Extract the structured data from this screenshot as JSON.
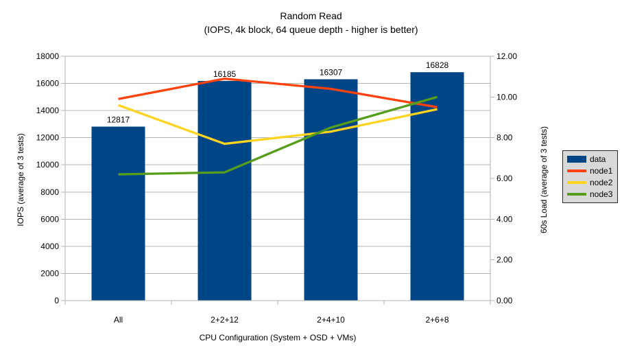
{
  "chart_data": {
    "type": "combo-bar-line",
    "title": "Random Read",
    "subtitle": "(IOPS, 4k block, 64 queue depth - higher is better)",
    "categories": [
      "All",
      "2+2+12",
      "2+4+10",
      "2+6+8"
    ],
    "bar_series": {
      "name": "data",
      "color": "#004586",
      "axis": "left",
      "values": [
        12817,
        16185,
        16307,
        16828
      ],
      "data_labels": [
        "12817",
        "16185",
        "16307",
        "16828"
      ]
    },
    "line_series": [
      {
        "name": "node1",
        "color": "#FF420E",
        "axis": "right",
        "values": [
          9.9,
          10.9,
          10.4,
          9.5
        ]
      },
      {
        "name": "node2",
        "color": "#FFD320",
        "axis": "right",
        "values": [
          9.6,
          7.7,
          8.3,
          9.4
        ]
      },
      {
        "name": "node3",
        "color": "#579D1C",
        "axis": "right",
        "values": [
          6.2,
          6.3,
          8.5,
          10.0
        ]
      }
    ],
    "left_axis": {
      "label": "IOPS (average of 3 tests)",
      "min": 0,
      "max": 18000,
      "step": 2000,
      "decimals": 0
    },
    "right_axis": {
      "label": "60s Load (average of 3 tests)",
      "min": 0,
      "max": 12,
      "step": 2,
      "decimals": 2
    },
    "x_axis": {
      "label": "CPU Configuration (System + OSD + VMs)"
    },
    "legend": {
      "position": "right"
    },
    "grid": "horizontal-left-axis",
    "colors": {
      "background": "#ffffff",
      "grid": "#b3b3b3",
      "axis": "#b3b3b3",
      "text": "#000000",
      "legend_bg": "#d9d9d9",
      "legend_border": "#262626"
    }
  }
}
